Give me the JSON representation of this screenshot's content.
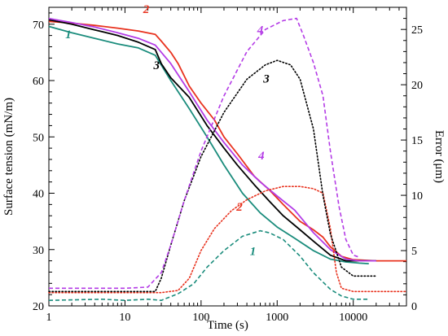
{
  "chart_data": {
    "type": "line",
    "xscale": "log",
    "xlabel": "Time (s)",
    "ylabel_left": "Surface tension (mN/m)",
    "ylabel_right": "Error (μm)",
    "xlim": [
      1,
      50000
    ],
    "ylim_left": [
      20,
      73
    ],
    "ylim_right": [
      0,
      27
    ],
    "x_ticks": [
      1,
      10,
      100,
      1000,
      10000
    ],
    "x_tick_labels": [
      "1",
      "10",
      "100",
      "1000",
      "10000"
    ],
    "y_left_ticks": [
      20,
      30,
      40,
      50,
      60,
      70
    ],
    "y_right_ticks": [
      0,
      5,
      10,
      15,
      20,
      25
    ],
    "grid": false,
    "legend": "none",
    "series": [
      {
        "name": "1",
        "axis": "left",
        "style": "solid",
        "color": "#1a8c7c",
        "points": [
          [
            1,
            69.6
          ],
          [
            2,
            68.5
          ],
          [
            4,
            67.5
          ],
          [
            8,
            66.5
          ],
          [
            15,
            65.8
          ],
          [
            25,
            64.5
          ],
          [
            40,
            60
          ],
          [
            70,
            55
          ],
          [
            120,
            50
          ],
          [
            200,
            45
          ],
          [
            350,
            40
          ],
          [
            600,
            36.5
          ],
          [
            1000,
            34
          ],
          [
            1700,
            32
          ],
          [
            3000,
            29.8
          ],
          [
            5000,
            28.3
          ],
          [
            8000,
            27.8
          ],
          [
            12000,
            27.6
          ],
          [
            16000,
            27.5
          ]
        ]
      },
      {
        "name": "2",
        "axis": "left",
        "style": "solid",
        "color": "#e8321e",
        "points": [
          [
            1,
            70.5
          ],
          [
            2,
            70.2
          ],
          [
            4,
            69.8
          ],
          [
            8,
            69.3
          ],
          [
            15,
            68.8
          ],
          [
            25,
            68.2
          ],
          [
            30,
            67
          ],
          [
            40,
            65
          ],
          [
            50,
            63
          ],
          [
            70,
            59
          ],
          [
            100,
            56
          ],
          [
            150,
            53
          ],
          [
            200,
            50
          ],
          [
            300,
            47
          ],
          [
            500,
            43
          ],
          [
            800,
            40.5
          ],
          [
            1200,
            38
          ],
          [
            2000,
            35
          ],
          [
            3000,
            33.5
          ],
          [
            4000,
            32.2
          ],
          [
            5000,
            30.5
          ],
          [
            7000,
            28.8
          ],
          [
            10000,
            28.2
          ],
          [
            20000,
            28
          ],
          [
            50000,
            28
          ]
        ]
      },
      {
        "name": "3",
        "axis": "left",
        "style": "solid",
        "color": "#000000",
        "points": [
          [
            1,
            70.8
          ],
          [
            2,
            70
          ],
          [
            4,
            69
          ],
          [
            8,
            68
          ],
          [
            15,
            66.8
          ],
          [
            25,
            65.5
          ],
          [
            30,
            63
          ],
          [
            40,
            60.5
          ],
          [
            70,
            57
          ],
          [
            120,
            52
          ],
          [
            200,
            48
          ],
          [
            300,
            45
          ],
          [
            500,
            41.5
          ],
          [
            800,
            38.5
          ],
          [
            1200,
            36
          ],
          [
            2000,
            33.5
          ],
          [
            3000,
            31.5
          ],
          [
            5000,
            29
          ],
          [
            8000,
            28
          ],
          [
            20000,
            28
          ]
        ]
      },
      {
        "name": "4",
        "axis": "left",
        "style": "solid",
        "color": "#b43ce6",
        "points": [
          [
            1,
            71
          ],
          [
            2,
            70.3
          ],
          [
            4,
            69.5
          ],
          [
            8,
            68.5
          ],
          [
            15,
            67.5
          ],
          [
            25,
            66.3
          ],
          [
            40,
            63
          ],
          [
            70,
            58
          ],
          [
            120,
            53
          ],
          [
            200,
            49
          ],
          [
            350,
            45
          ],
          [
            600,
            42
          ],
          [
            1000,
            39.5
          ],
          [
            1700,
            37
          ],
          [
            3000,
            33
          ],
          [
            5000,
            30
          ],
          [
            8000,
            28.3
          ],
          [
            12000,
            28
          ],
          [
            20000,
            28
          ]
        ]
      },
      {
        "name": "1",
        "axis": "right",
        "style": "dashed",
        "color": "#1a8c7c",
        "points": [
          [
            1,
            0.5
          ],
          [
            5,
            0.6
          ],
          [
            10,
            0.5
          ],
          [
            20,
            0.6
          ],
          [
            30,
            0.5
          ],
          [
            50,
            1.1
          ],
          [
            80,
            2
          ],
          [
            120,
            3.5
          ],
          [
            200,
            5
          ],
          [
            350,
            6.3
          ],
          [
            600,
            6.8
          ],
          [
            800,
            6.6
          ],
          [
            1200,
            6
          ],
          [
            2000,
            4.5
          ],
          [
            3000,
            3
          ],
          [
            5000,
            1.5
          ],
          [
            7000,
            0.9
          ],
          [
            10000,
            0.6
          ],
          [
            16000,
            0.6
          ]
        ]
      },
      {
        "name": "2",
        "axis": "right",
        "style": "dotted",
        "color": "#e8321e",
        "points": [
          [
            1,
            1.2
          ],
          [
            10,
            1.2
          ],
          [
            30,
            1.2
          ],
          [
            50,
            1.4
          ],
          [
            70,
            2.5
          ],
          [
            100,
            5
          ],
          [
            150,
            7
          ],
          [
            250,
            8.6
          ],
          [
            400,
            9.6
          ],
          [
            700,
            10.4
          ],
          [
            1200,
            10.8
          ],
          [
            2000,
            10.8
          ],
          [
            3000,
            10.6
          ],
          [
            4000,
            10.2
          ],
          [
            5000,
            7
          ],
          [
            6000,
            3
          ],
          [
            7000,
            1.6
          ],
          [
            10000,
            1.3
          ],
          [
            20000,
            1.3
          ],
          [
            50000,
            1.3
          ]
        ]
      },
      {
        "name": "3",
        "axis": "right",
        "style": "dotted",
        "color": "#000000",
        "points": [
          [
            1,
            1.3
          ],
          [
            10,
            1.3
          ],
          [
            25,
            1.3
          ],
          [
            30,
            2.5
          ],
          [
            40,
            5.5
          ],
          [
            60,
            9.5
          ],
          [
            100,
            13.5
          ],
          [
            200,
            17.5
          ],
          [
            400,
            20.5
          ],
          [
            700,
            21.8
          ],
          [
            1000,
            22.2
          ],
          [
            1500,
            21.8
          ],
          [
            2000,
            20.5
          ],
          [
            3000,
            16
          ],
          [
            4000,
            10
          ],
          [
            5000,
            6.5
          ],
          [
            7000,
            3.5
          ],
          [
            10000,
            2.7
          ],
          [
            20000,
            2.7
          ]
        ]
      },
      {
        "name": "4",
        "axis": "right",
        "style": "dashed",
        "color": "#b43ce6",
        "points": [
          [
            1,
            1.6
          ],
          [
            10,
            1.6
          ],
          [
            20,
            1.7
          ],
          [
            30,
            3
          ],
          [
            40,
            5.5
          ],
          [
            60,
            9.5
          ],
          [
            100,
            14
          ],
          [
            200,
            19
          ],
          [
            400,
            23
          ],
          [
            700,
            25
          ],
          [
            1200,
            25.8
          ],
          [
            1800,
            26
          ],
          [
            2200,
            24.5
          ],
          [
            3000,
            22
          ],
          [
            4000,
            19
          ],
          [
            5000,
            14
          ],
          [
            6500,
            9
          ],
          [
            8000,
            6
          ],
          [
            10000,
            4.6
          ],
          [
            12000,
            4.4
          ]
        ]
      }
    ],
    "labels": [
      {
        "text": "1",
        "color": "#1a8c7c",
        "x": 1.8,
        "y": 67.5,
        "axis": "left"
      },
      {
        "text": "2",
        "color": "#e8321e",
        "x": 19,
        "y": 72,
        "axis": "left"
      },
      {
        "text": "3",
        "color": "#000000",
        "x": 26,
        "y": 62,
        "axis": "left"
      },
      {
        "text": "4",
        "color": "#b43ce6",
        "x": 620,
        "y": 46,
        "axis": "left"
      },
      {
        "text": "1",
        "color": "#1a8c7c",
        "x": 480,
        "y": 4.6,
        "axis": "right"
      },
      {
        "text": "2",
        "color": "#e8321e",
        "x": 320,
        "y": 8.6,
        "axis": "right"
      },
      {
        "text": "3",
        "color": "#000000",
        "x": 720,
        "y": 20.2,
        "axis": "right"
      },
      {
        "text": "4",
        "color": "#b43ce6",
        "x": 600,
        "y": 24.6,
        "axis": "right"
      }
    ]
  }
}
